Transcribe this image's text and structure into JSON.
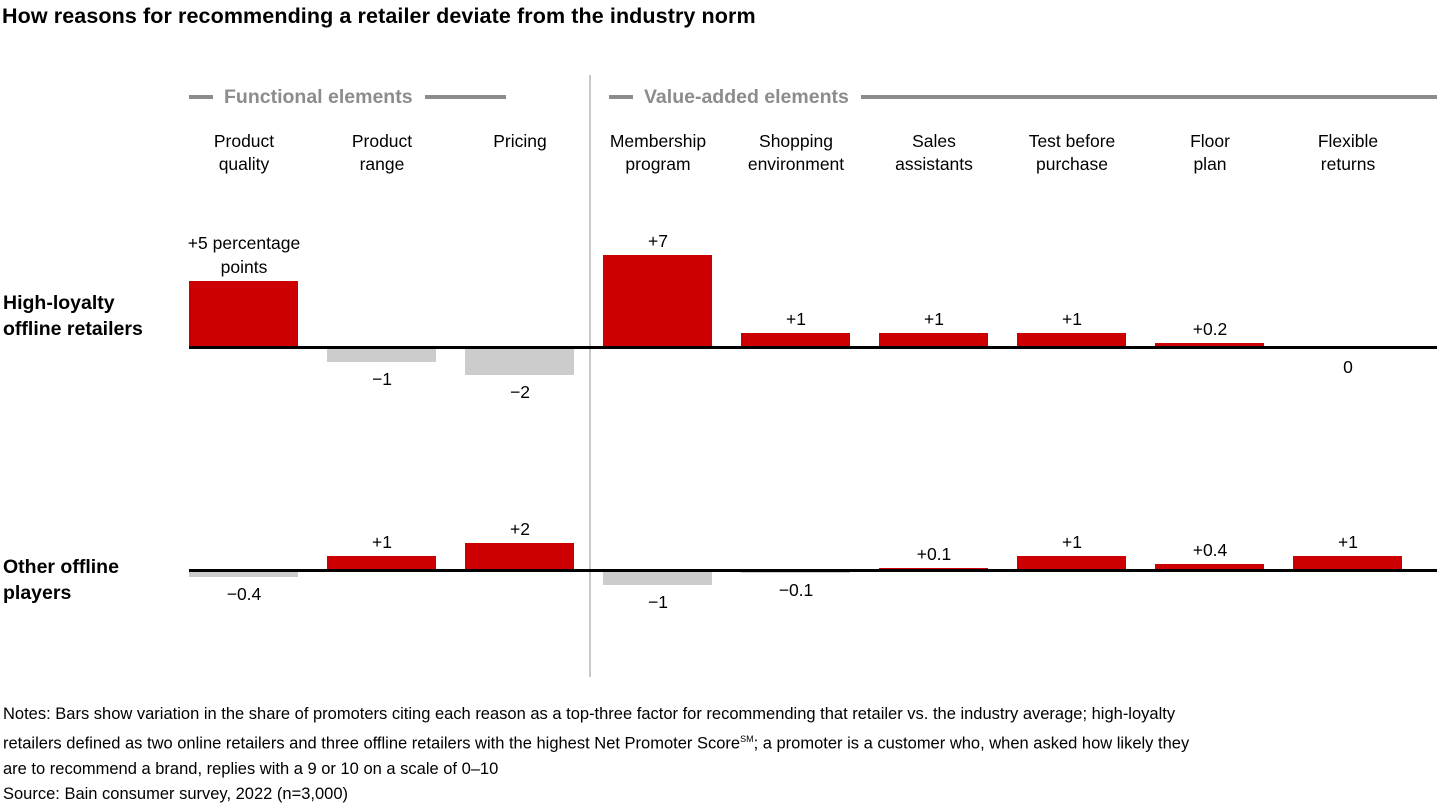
{
  "chart_data": {
    "type": "bar",
    "title": "How reasons for recommending a retailer deviate from the industry norm",
    "section_headers": [
      {
        "label": "Functional elements"
      },
      {
        "label": "Value-added elements"
      }
    ],
    "categories": [
      {
        "label": "Product quality",
        "lines": [
          "Product",
          "quality"
        ],
        "group": "Functional elements"
      },
      {
        "label": "Product range",
        "lines": [
          "Product",
          "range"
        ],
        "group": "Functional elements"
      },
      {
        "label": "Pricing",
        "lines": [
          "Pricing"
        ],
        "group": "Functional elements"
      },
      {
        "label": "Membership program",
        "lines": [
          "Membership",
          "program"
        ],
        "group": "Value-added elements"
      },
      {
        "label": "Shopping environment",
        "lines": [
          "Shopping",
          "environment"
        ],
        "group": "Value-added elements"
      },
      {
        "label": "Sales assistants",
        "lines": [
          "Sales",
          "assistants"
        ],
        "group": "Value-added elements"
      },
      {
        "label": "Test before purchase",
        "lines": [
          "Test before",
          "purchase"
        ],
        "group": "Value-added elements"
      },
      {
        "label": "Floor plan",
        "lines": [
          "Floor",
          "plan"
        ],
        "group": "Value-added elements"
      },
      {
        "label": "Flexible returns",
        "lines": [
          "Flexible",
          "returns"
        ],
        "group": "Value-added elements"
      }
    ],
    "series": [
      {
        "name": "High-loyalty offline retailers",
        "name_lines": [
          "High-loyalty",
          "offline retailers"
        ],
        "values": [
          5,
          -1,
          -2,
          7,
          1,
          1,
          1,
          0.2,
          0
        ],
        "value_labels": [
          [
            "+5 percentage",
            "points"
          ],
          [
            "−1"
          ],
          [
            "−2"
          ],
          [
            "+7"
          ],
          [
            "+1"
          ],
          [
            "+1"
          ],
          [
            "+1"
          ],
          [
            "+0.2"
          ],
          [
            "0"
          ]
        ]
      },
      {
        "name": "Other offline players",
        "name_lines": [
          "Other offline",
          "players"
        ],
        "values": [
          -0.4,
          1,
          2,
          -1,
          -0.1,
          0.1,
          1,
          0.4,
          1
        ],
        "value_labels": [
          [
            "−0.4"
          ],
          [
            "+1"
          ],
          [
            "+2"
          ],
          [
            "−1"
          ],
          [
            "−0.1"
          ],
          [
            "+0.1"
          ],
          [
            "+1"
          ],
          [
            "+0.4"
          ],
          [
            "+1"
          ]
        ]
      }
    ],
    "unit_label": "percentage points",
    "colors": {
      "positive_bar": "#cc0000",
      "negative_bar": "#cccccc",
      "axis": "#000000",
      "section_header": "#8c8c8c",
      "divider": "#c8c8c8"
    },
    "layout_hints": {
      "grid": false,
      "legend": "none",
      "orientation": "vertical",
      "two_row_small_multiples": true
    }
  },
  "footer": {
    "notes_line1": "Notes: Bars show variation in the share of promoters citing each reason as a top-three factor for recommending that retailer vs. the industry average; high-loyalty",
    "notes_line2_pre": "retailers defined as two online retailers and three offline retailers with the highest Net Promoter Score",
    "notes_superscript": "SM",
    "notes_line2_post": "; a promoter is a customer who, when asked how likely they",
    "notes_line3": "are to recommend a brand, replies with a 9 or 10 on a scale of 0–10",
    "source": "Source: Bain consumer survey, 2022 (n=3,000)"
  }
}
